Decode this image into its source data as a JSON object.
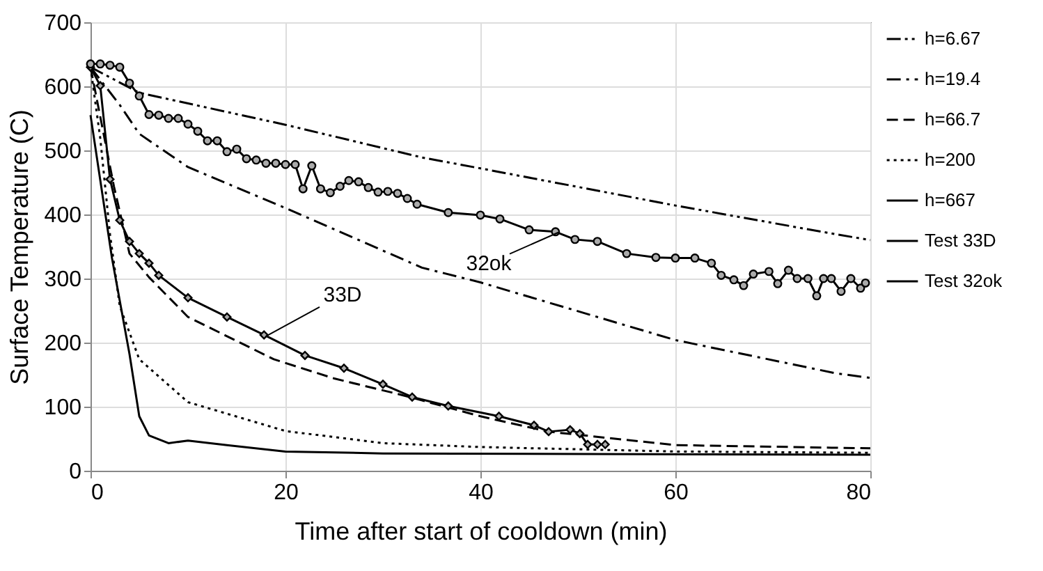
{
  "chart_data": {
    "type": "line",
    "xlabel": "Time after start of cooldown (min)",
    "ylabel": "Surface Temperature (C)",
    "xlim": [
      0,
      80
    ],
    "xticks": [
      0,
      20,
      40,
      60,
      80
    ],
    "ylim": [
      0,
      700
    ],
    "yticks": [
      0,
      100,
      200,
      300,
      400,
      500,
      600,
      700
    ],
    "grid": true,
    "legend": "right",
    "annotations": [
      {
        "text": "33D",
        "x": 18,
        "y": 210
      },
      {
        "text": "32ok",
        "x": 48,
        "y": 372
      }
    ],
    "series": [
      {
        "name": "h=6.67",
        "color": "#000000",
        "line_style": "dashdotdot",
        "marker": "none",
        "x": [
          0,
          5,
          20,
          34,
          40,
          60,
          76.5,
          80
        ],
        "values": [
          630,
          590,
          540,
          489,
          472,
          414,
          369,
          360
        ]
      },
      {
        "name": "h=19.4",
        "color": "#000000",
        "line_style": "dashdot",
        "marker": "none",
        "x": [
          0,
          3,
          5,
          10,
          20,
          34,
          40,
          60,
          76.5,
          80
        ],
        "values": [
          630,
          571,
          526,
          474,
          410,
          317,
          294,
          204,
          152,
          145
        ]
      },
      {
        "name": "h=66.7",
        "color": "#000000",
        "line_style": "dashed",
        "marker": "none",
        "x": [
          0,
          2.4,
          4,
          6,
          10,
          18.8,
          25,
          32,
          40,
          47,
          60,
          76,
          80
        ],
        "values": [
          630,
          444,
          339,
          302,
          240,
          174,
          144,
          118,
          85,
          61,
          40,
          36,
          35
        ]
      },
      {
        "name": "h=200",
        "color": "#000000",
        "line_style": "dotted",
        "marker": "none",
        "x": [
          0,
          1,
          2,
          3,
          5,
          10,
          20,
          30,
          40,
          60,
          80
        ],
        "values": [
          630,
          519,
          369,
          257,
          174,
          107,
          62,
          43,
          37,
          30,
          28
        ]
      },
      {
        "name": "h=667",
        "color": "#000000",
        "line_style": "solid",
        "marker": "none",
        "x": [
          0,
          2.2,
          4,
          5,
          6,
          8,
          10,
          14,
          20,
          30,
          80
        ],
        "values": [
          555,
          332,
          182,
          85,
          55,
          43,
          47,
          40,
          30,
          27,
          25
        ]
      },
      {
        "name": "Test 33D",
        "color": "#000000",
        "line_style": "solid",
        "marker": "diamond",
        "x": [
          0,
          1,
          2,
          3,
          4,
          5,
          6,
          7,
          10,
          14,
          17.8,
          22,
          26,
          30,
          33,
          36.7,
          41.9,
          45.5,
          47,
          49.2,
          50.2,
          51,
          52,
          52.8
        ],
        "values": [
          630,
          601,
          455,
          391,
          358,
          339,
          324,
          305,
          270,
          240,
          212,
          180,
          160,
          135,
          115,
          101,
          85,
          71,
          61,
          64,
          58,
          41,
          41,
          41
        ]
      },
      {
        "name": "Test 32ok",
        "color": "#000000",
        "line_style": "solid",
        "marker": "circle",
        "x": [
          0,
          1,
          2,
          3,
          4,
          5,
          6,
          7,
          8,
          9,
          10,
          11,
          12,
          13,
          14,
          15,
          16,
          17,
          18,
          19,
          20,
          21,
          21.8,
          22.7,
          23.6,
          24.6,
          25.6,
          26.5,
          27.5,
          28.5,
          29.5,
          30.5,
          31.5,
          32.5,
          33.5,
          36.7,
          40,
          42,
          45,
          47.7,
          49.7,
          52,
          55,
          58,
          60,
          62,
          63.7,
          64.7,
          66,
          67,
          68,
          69.6,
          70.5,
          71.6,
          72.5,
          73.6,
          74.5,
          75.2,
          76,
          77,
          78,
          79,
          79.5
        ],
        "values": [
          635,
          635,
          633,
          630,
          605,
          585,
          556,
          555,
          550,
          550,
          541,
          530,
          515,
          515,
          498,
          502,
          487,
          485,
          480,
          480,
          478,
          478,
          440,
          476,
          440,
          434,
          444,
          453,
          451,
          442,
          435,
          436,
          433,
          425,
          416,
          403,
          399,
          393,
          376,
          373,
          361,
          358,
          339,
          333,
          332,
          332,
          324,
          305,
          298,
          289,
          307,
          311,
          292,
          313,
          300,
          300,
          273,
          300,
          300,
          280,
          300,
          285,
          293
        ]
      }
    ]
  }
}
